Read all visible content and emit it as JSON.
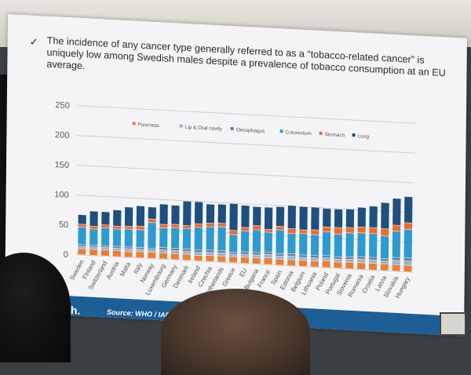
{
  "slide": {
    "bullet": "✓",
    "headline": "The incidence of any cancer type generally referred to as a “tobacco-related cancer” is uniquely low among Swedish males despite a prevalence of tobacco consumption at an EU average.",
    "brand": "Match.",
    "source": "Source: WHO / IARC http"
  },
  "chart_data": {
    "type": "bar",
    "stacked": true,
    "title": "",
    "xlabel": "",
    "ylabel": "",
    "ylim": [
      0,
      250
    ],
    "yticks": [
      "0",
      "50",
      "100",
      "150",
      "200",
      "250"
    ],
    "grid": true,
    "legend_position": "top",
    "categories": [
      "Sweden",
      "Finland",
      "Switzerland",
      "Austria",
      "Malta",
      "Italy",
      "Norway",
      "Luxembourg",
      "Germany",
      "Denmark",
      "Ireland",
      "Czechia",
      "Netherlands",
      "Greece",
      "EU",
      "Bulgaria",
      "France",
      "Spain",
      "Estonia",
      "Belgium",
      "Lithuania",
      "Poland",
      "Portugal",
      "Slovenia",
      "Romania",
      "Croatia",
      "Latvia",
      "Slovakia",
      "Hungary"
    ],
    "series": [
      {
        "name": "Pancreas",
        "color": "#ef7d32",
        "values": [
          10,
          10,
          10,
          10,
          9,
          10,
          10,
          10,
          10,
          10,
          9,
          10,
          10,
          10,
          10,
          10,
          11,
          10,
          10,
          10,
          10,
          11,
          10,
          11,
          11,
          11,
          11,
          11,
          11
        ]
      },
      {
        "name": "Lip & Oral cavity",
        "color": "#8fb6d8",
        "values": [
          4,
          4,
          4,
          4,
          5,
          4,
          4,
          5,
          5,
          5,
          5,
          5,
          5,
          4,
          5,
          5,
          6,
          5,
          6,
          5,
          5,
          5,
          5,
          5,
          6,
          6,
          5,
          7,
          7
        ]
      },
      {
        "name": "Oesophagus",
        "color": "#6a7f94",
        "values": [
          3,
          3,
          3,
          3,
          3,
          3,
          3,
          4,
          4,
          4,
          4,
          4,
          4,
          3,
          4,
          4,
          4,
          4,
          4,
          4,
          4,
          4,
          4,
          4,
          4,
          4,
          4,
          5,
          5
        ]
      },
      {
        "name": "Colorectum",
        "color": "#2e9bd0",
        "values": [
          29,
          27,
          30,
          29,
          30,
          30,
          43,
          33,
          34,
          34,
          38,
          39,
          40,
          30,
          35,
          38,
          33,
          40,
          34,
          36,
          35,
          40,
          38,
          40,
          40,
          40,
          38,
          44,
          48
        ]
      },
      {
        "name": "Stomach",
        "color": "#f06a2a",
        "values": [
          5,
          5,
          5,
          5,
          5,
          6,
          6,
          6,
          6,
          5,
          6,
          6,
          6,
          7,
          6,
          7,
          5,
          6,
          8,
          6,
          8,
          8,
          11,
          9,
          10,
          10,
          12,
          10,
          11
        ]
      },
      {
        "name": "Lung",
        "color": "#1e4f80",
        "values": [
          16,
          25,
          22,
          27,
          32,
          34,
          20,
          34,
          32,
          41,
          37,
          32,
          32,
          45,
          37,
          32,
          37,
          33,
          39,
          39,
          38,
          31,
          31,
          31,
          33,
          36,
          44,
          45,
          44
        ]
      }
    ]
  }
}
